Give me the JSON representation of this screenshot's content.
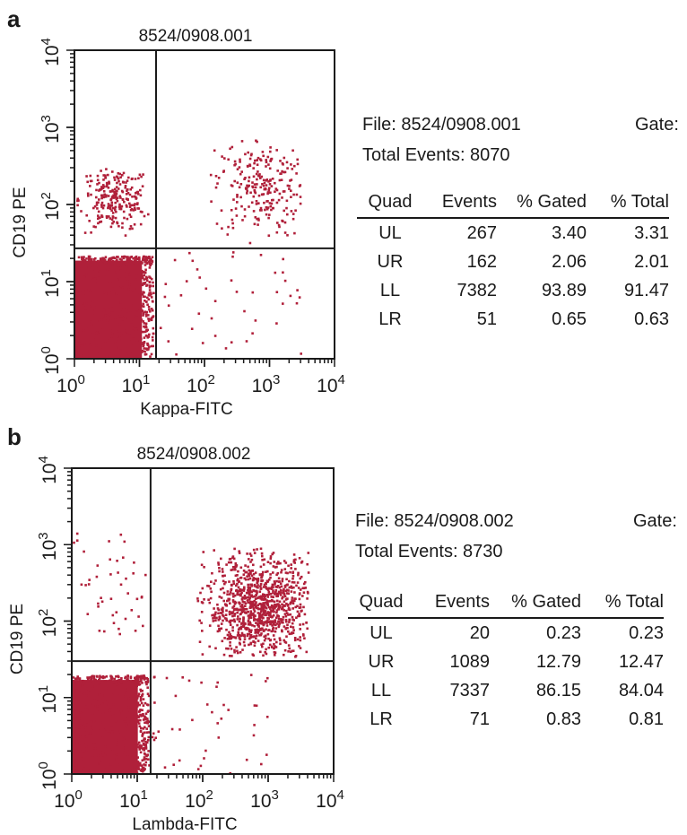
{
  "chart_data": [
    {
      "type": "scatter",
      "panel_label": "a",
      "title": "8524/0908.001",
      "xlabel": "Kappa-FITC",
      "ylabel": "CD19 PE",
      "x_scale": "log",
      "y_scale": "log",
      "xlim": [
        1,
        10000
      ],
      "ylim": [
        1,
        10000
      ],
      "x_ticks": [
        1,
        10,
        100,
        1000,
        10000
      ],
      "y_ticks": [
        1,
        10,
        100,
        1000,
        10000
      ],
      "quadrant_gate": {
        "x": 18,
        "y": 27
      },
      "point_color": "#b0203a",
      "clusters": [
        {
          "quadrant": "LL",
          "x_range": [
            1,
            15
          ],
          "y_range": [
            1,
            22
          ],
          "shape": "dense block"
        },
        {
          "quadrant": "UL",
          "x_range": [
            1,
            14
          ],
          "y_range": [
            40,
            300
          ],
          "center": [
            4,
            120
          ]
        },
        {
          "quadrant": "UR",
          "x_range": [
            100,
            3000
          ],
          "y_range": [
            28,
            700
          ],
          "center": [
            700,
            180
          ]
        },
        {
          "quadrant": "LR",
          "x_range": [
            18,
            3000
          ],
          "y_range": [
            1,
            25
          ],
          "shape": "sparse"
        }
      ],
      "info": {
        "file": "File: 8524/0908.001",
        "gate": "Gate:",
        "total_events": "Total Events: 8070"
      },
      "table": {
        "headers": [
          "Quad",
          "Events",
          "% Gated",
          "% Total"
        ],
        "rows": [
          [
            "UL",
            "267",
            "3.40",
            "3.31"
          ],
          [
            "UR",
            "162",
            "2.06",
            "2.01"
          ],
          [
            "LL",
            "7382",
            "93.89",
            "91.47"
          ],
          [
            "LR",
            "51",
            "0.65",
            "0.63"
          ]
        ]
      }
    },
    {
      "type": "scatter",
      "panel_label": "b",
      "title": "8524/0908.002",
      "xlabel": "Lambda-FITC",
      "ylabel": "CD19 PE",
      "x_scale": "log",
      "y_scale": "log",
      "xlim": [
        1,
        10000
      ],
      "ylim": [
        1,
        10000
      ],
      "x_ticks": [
        1,
        10,
        100,
        1000,
        10000
      ],
      "y_ticks": [
        1,
        10,
        100,
        1000,
        10000
      ],
      "quadrant_gate": {
        "x": 16,
        "y": 30
      },
      "point_color": "#b0203a",
      "clusters": [
        {
          "quadrant": "LL",
          "x_range": [
            1,
            14
          ],
          "y_range": [
            1,
            20
          ],
          "shape": "dense block"
        },
        {
          "quadrant": "UR",
          "x_range": [
            80,
            4000
          ],
          "y_range": [
            35,
            1000
          ],
          "center": [
            700,
            150
          ],
          "shape": "dense cloud"
        },
        {
          "quadrant": "UL",
          "x_range": [
            1,
            14
          ],
          "y_range": [
            60,
            1500
          ],
          "shape": "sparse"
        },
        {
          "quadrant": "LR",
          "x_range": [
            16,
            1000
          ],
          "y_range": [
            1,
            25
          ],
          "shape": "sparse"
        }
      ],
      "info": {
        "file": "File: 8524/0908.002",
        "gate": "Gate:",
        "total_events": "Total Events: 8730"
      },
      "table": {
        "headers": [
          "Quad",
          "Events",
          "% Gated",
          "% Total"
        ],
        "rows": [
          [
            "UL",
            "20",
            "0.23",
            "0.23"
          ],
          [
            "UR",
            "1089",
            "12.79",
            "12.47"
          ],
          [
            "LL",
            "7337",
            "86.15",
            "84.04"
          ],
          [
            "LR",
            "71",
            "0.83",
            "0.81"
          ]
        ]
      }
    }
  ]
}
